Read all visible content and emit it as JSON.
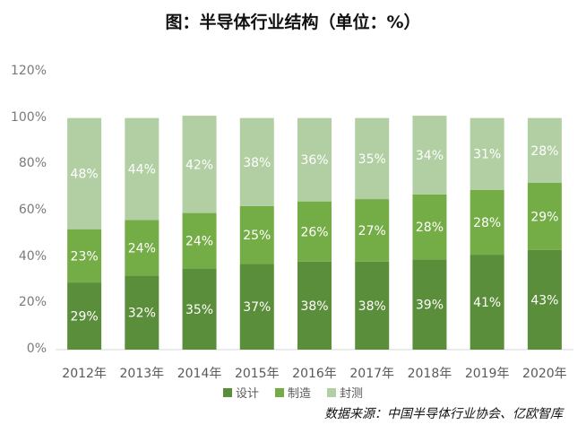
{
  "chart_data": {
    "type": "bar",
    "stacked": true,
    "title": "图：半导体行业结构（单位：%）",
    "categories": [
      "2012年",
      "2013年",
      "2014年",
      "2015年",
      "2016年",
      "2017年",
      "2018年",
      "2019年",
      "2020年"
    ],
    "series": [
      {
        "name": "设计",
        "values": [
          29,
          32,
          35,
          37,
          38,
          38,
          39,
          41,
          43
        ],
        "color": "#5b8e3a"
      },
      {
        "name": "制造",
        "values": [
          23,
          24,
          24,
          25,
          26,
          27,
          28,
          28,
          29
        ],
        "color": "#74ad45"
      },
      {
        "name": "封测",
        "values": [
          48,
          44,
          42,
          38,
          36,
          35,
          34,
          31,
          28
        ],
        "color": "#b1cfa2"
      }
    ],
    "yticks": [
      "0%",
      "20%",
      "40%",
      "60%",
      "80%",
      "100%",
      "120%"
    ],
    "ylim": [
      0,
      120
    ],
    "grid": false,
    "legend_position": "bottom"
  },
  "source": "数据来源：中国半导体行业协会、亿欧智库"
}
